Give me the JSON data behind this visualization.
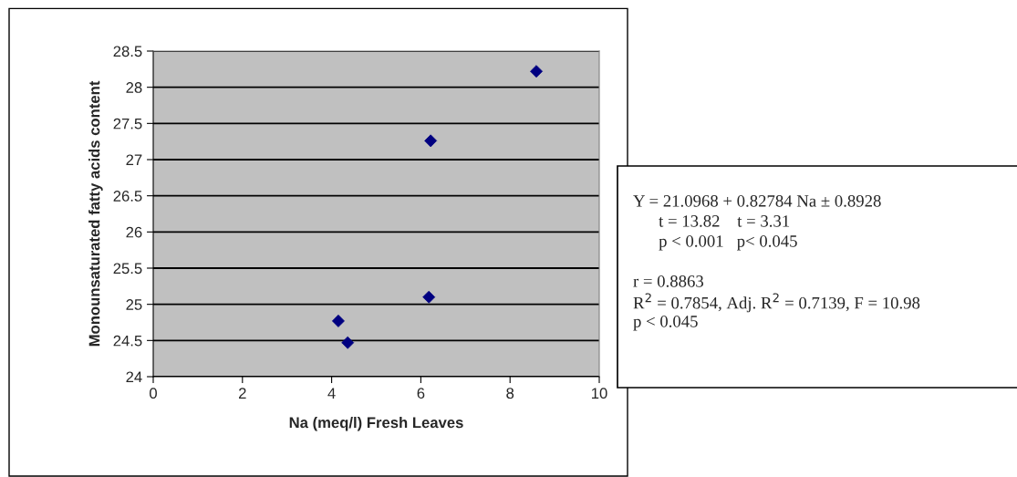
{
  "chart_data": {
    "type": "scatter",
    "xlabel": "Na (meq/l) Fresh Leaves",
    "ylabel": "Monounsaturated fatty acids content",
    "x": [
      8.59,
      6.22,
      6.18,
      4.15,
      4.36
    ],
    "series": [
      {
        "color": "#000080",
        "values": [
          28.22,
          27.26,
          25.1,
          24.77,
          24.47
        ]
      }
    ],
    "xlim": [
      0,
      10
    ],
    "xticks": [
      0,
      2,
      4,
      6,
      8,
      10
    ],
    "ylim": [
      24,
      28.5
    ],
    "yticks": [
      24,
      24.5,
      25,
      25.5,
      26,
      26.5,
      27,
      27.5,
      28,
      28.5
    ],
    "grid": "y",
    "marker": "diamond",
    "legend": false,
    "annotations": [
      "Y = 21.0968 + 0.82784 Na ± 0.8928",
      "      t = 13.82    t = 3.31",
      "      p < 0.001   p< 0.045",
      "r = 0.8863",
      "R$^{2}$ = 0.7854, Adj. R$^{2}$ = 0.7139, F = 10.98",
      "p < 0.045"
    ]
  }
}
